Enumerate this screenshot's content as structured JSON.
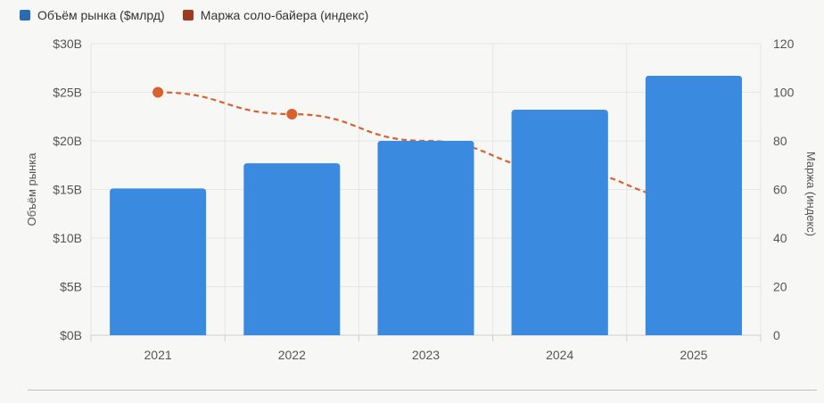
{
  "legend": {
    "bars_label": "Объём рынка ($млрд)",
    "line_label": "Маржа соло-байера (индекс)"
  },
  "colors": {
    "bar": "#3a8be0",
    "line": "#d9602f",
    "legend_bar": "#2a6bb4",
    "legend_line": "#9c3b1f",
    "grid": "#e6e6e6",
    "axis_text": "#555555"
  },
  "chart_data": {
    "type": "bar",
    "categories": [
      "2021",
      "2022",
      "2023",
      "2024",
      "2025"
    ],
    "series": [
      {
        "name": "Объём рынка ($млрд)",
        "type": "bar",
        "axis": "left",
        "values": [
          15.1,
          17.7,
          20.0,
          23.2,
          26.7
        ]
      },
      {
        "name": "Маржа соло-байера (индекс)",
        "type": "line",
        "axis": "right",
        "style": "dashed",
        "values": [
          100,
          91,
          80,
          68,
          56
        ],
        "visible_markers": [
          true,
          true,
          false,
          false,
          false
        ]
      }
    ],
    "ylabel": "Объём рынка",
    "y2label": "Маржа (индекс)",
    "ylim": [
      0,
      30
    ],
    "y2lim": [
      0,
      120
    ],
    "yticks": [
      "$0B",
      "$5B",
      "$10B",
      "$15B",
      "$20B",
      "$25B",
      "$30B"
    ],
    "y2ticks": [
      "0",
      "20",
      "40",
      "60",
      "80",
      "100",
      "120"
    ],
    "grid": true,
    "legend_position": "top-left"
  }
}
